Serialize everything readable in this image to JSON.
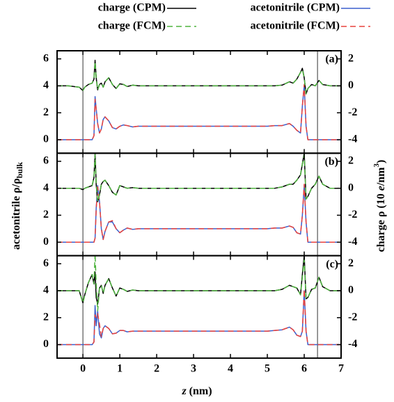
{
  "figure": {
    "x_label": [
      "z",
      " (nm)"
    ],
    "y_label": [
      "acetonitrile ρ/ρ",
      "bulk"
    ],
    "y2_label": [
      "charge ρ (10 ",
      "e",
      "/nm",
      "3",
      ")"
    ]
  },
  "chart_data": [
    {
      "type": "line",
      "label": "(a)",
      "x": [
        -0.7,
        -0.4,
        -0.1,
        0,
        0.05,
        0.15,
        0.25,
        0.3,
        0.33,
        0.36,
        0.4,
        0.45,
        0.5,
        0.55,
        0.6,
        0.7,
        0.8,
        0.9,
        1.0,
        1.1,
        1.2,
        1.35,
        1.5,
        1.7,
        2.0,
        2.5,
        3.0,
        3.5,
        4.0,
        4.5,
        4.8,
        5.0,
        5.2,
        5.4,
        5.6,
        5.7,
        5.8,
        5.9,
        5.95,
        6.0,
        6.05,
        6.1,
        6.2,
        6.3,
        6.4,
        6.5,
        6.7,
        7.0
      ],
      "xlim": [
        -0.7,
        7
      ],
      "xticks": [
        0,
        1,
        2,
        3,
        4,
        5,
        6,
        7
      ],
      "ylim": [
        -1,
        6.6
      ],
      "yticks": [
        0,
        2,
        4,
        6
      ],
      "y2lim": [
        -5,
        2.6
      ],
      "y2ticks": [
        -4,
        -2,
        0,
        2
      ],
      "vlines": [
        0,
        6.36
      ],
      "series": [
        {
          "name": "acetonitrile (CPM)",
          "color": "#3a5fcd",
          "dash": false,
          "values": [
            0,
            0,
            0,
            0,
            0,
            0,
            0,
            0.3,
            3.2,
            2.3,
            1.2,
            0.5,
            0.8,
            1.5,
            1.7,
            1.4,
            0.9,
            0.8,
            1.0,
            1.1,
            1.05,
            0.95,
            1.0,
            1.0,
            1.0,
            1.0,
            1.0,
            1.0,
            1.0,
            1.0,
            1.0,
            1.0,
            1.05,
            1.05,
            1.2,
            1.0,
            0.7,
            0.5,
            2.5,
            4.0,
            1.0,
            0,
            0,
            0,
            0,
            0,
            0,
            0
          ]
        },
        {
          "name": "acetonitrile (FCM)",
          "color": "#e8413c",
          "dash": true,
          "values": [
            0,
            0,
            0,
            0,
            0,
            0,
            0,
            0.3,
            3.0,
            2.3,
            1.2,
            0.5,
            0.8,
            1.5,
            1.7,
            1.4,
            0.9,
            0.8,
            1.0,
            1.1,
            1.05,
            0.95,
            1.0,
            1.0,
            1.0,
            1.0,
            1.0,
            1.0,
            1.0,
            1.0,
            1.0,
            1.0,
            1.05,
            1.05,
            1.2,
            1.0,
            0.7,
            0.5,
            2.5,
            4.1,
            1.0,
            0,
            0,
            0,
            0,
            0,
            0,
            0
          ]
        },
        {
          "name": "charge (CPM)",
          "color": "#000000",
          "dash": false,
          "axis": "y2",
          "values": [
            0,
            0,
            -0.1,
            -0.35,
            -0.1,
            0.1,
            0.2,
            0.5,
            1.9,
            0.6,
            -0.3,
            0.1,
            0.2,
            -0.1,
            0.3,
            0.6,
            0.1,
            -0.2,
            0.15,
            0.1,
            -0.05,
            0.05,
            0,
            0,
            0,
            0,
            0,
            0,
            0,
            0,
            0,
            0,
            0,
            0.05,
            0.3,
            0.2,
            0.5,
            1.0,
            1.3,
            0.6,
            -0.6,
            -0.2,
            0.1,
            0,
            0.4,
            0.1,
            0,
            0
          ]
        },
        {
          "name": "charge (FCM)",
          "color": "#4db33d",
          "dash": true,
          "axis": "y2",
          "values": [
            0,
            0,
            -0.1,
            -0.35,
            -0.1,
            0.1,
            0.2,
            0.5,
            1.8,
            0.6,
            -0.3,
            0.1,
            0.2,
            -0.1,
            0.3,
            0.6,
            0.1,
            -0.2,
            0.15,
            0.1,
            -0.05,
            0.05,
            0,
            0,
            0,
            0,
            0,
            0,
            0,
            0,
            0,
            0,
            0,
            0.05,
            0.3,
            0.2,
            0.5,
            1.0,
            1.2,
            0.6,
            -0.6,
            -0.2,
            0.1,
            0,
            0.4,
            0.1,
            0,
            0
          ]
        }
      ]
    },
    {
      "type": "line",
      "label": "(b)",
      "x": [
        -0.7,
        -0.4,
        -0.1,
        0,
        0.05,
        0.15,
        0.25,
        0.3,
        0.33,
        0.36,
        0.4,
        0.45,
        0.5,
        0.55,
        0.6,
        0.7,
        0.8,
        0.9,
        1.0,
        1.1,
        1.2,
        1.35,
        1.5,
        1.7,
        2.0,
        2.5,
        3.0,
        3.5,
        4.0,
        4.5,
        4.8,
        5.0,
        5.2,
        5.4,
        5.6,
        5.7,
        5.8,
        5.9,
        5.95,
        6.0,
        6.05,
        6.1,
        6.2,
        6.3,
        6.4,
        6.5,
        6.7,
        7.0
      ],
      "xlim": [
        -0.7,
        7
      ],
      "xticks": [
        0,
        1,
        2,
        3,
        4,
        5,
        6,
        7
      ],
      "ylim": [
        -1,
        6.6
      ],
      "yticks": [
        0,
        2,
        4,
        6
      ],
      "y2lim": [
        -5,
        2.6
      ],
      "y2ticks": [
        -4,
        -2,
        0,
        2
      ],
      "vlines": [
        0,
        6.36
      ],
      "series": [
        {
          "name": "acetonitrile (CPM)",
          "color": "#3a5fcd",
          "dash": false,
          "values": [
            0,
            0,
            0,
            0,
            0,
            0,
            0,
            0,
            0.3,
            2.5,
            4.2,
            3.0,
            1.0,
            0.2,
            0.8,
            1.5,
            1.5,
            1.0,
            0.7,
            0.9,
            1.05,
            0.95,
            1.0,
            1.0,
            1.0,
            1.0,
            1.0,
            1.0,
            1.0,
            1.0,
            1.0,
            1.0,
            1.05,
            1.05,
            1.2,
            1.1,
            0.7,
            0.6,
            2.0,
            4.2,
            1.5,
            0,
            0,
            0,
            0,
            0,
            0,
            0
          ]
        },
        {
          "name": "acetonitrile (FCM)",
          "color": "#e8413c",
          "dash": true,
          "values": [
            0,
            0,
            0,
            0,
            0,
            0,
            0,
            0,
            0.3,
            2.4,
            4.1,
            3.0,
            1.0,
            0.2,
            0.8,
            1.5,
            1.6,
            1.0,
            0.7,
            0.9,
            1.05,
            0.95,
            1.0,
            1.0,
            1.0,
            1.0,
            1.0,
            1.0,
            1.0,
            1.0,
            1.0,
            1.0,
            1.05,
            1.05,
            1.2,
            1.1,
            0.7,
            0.6,
            2.0,
            4.3,
            1.5,
            0,
            0,
            0,
            0,
            0,
            0,
            0
          ]
        },
        {
          "name": "charge (CPM)",
          "color": "#000000",
          "dash": false,
          "axis": "y2",
          "values": [
            0,
            0,
            0,
            -0.1,
            0,
            0.1,
            0.2,
            0.8,
            2.6,
            0.3,
            -1.0,
            -0.5,
            0.3,
            0.5,
            0.6,
            0.2,
            -0.3,
            -0.5,
            0.2,
            0.1,
            0,
            0.05,
            0,
            0,
            0,
            0,
            0,
            0,
            0,
            0,
            0,
            0,
            0,
            0.1,
            0.3,
            0.3,
            0.6,
            1.0,
            1.8,
            2.6,
            -0.8,
            -0.6,
            0,
            0.3,
            0.9,
            0.3,
            0,
            0
          ]
        },
        {
          "name": "charge (FCM)",
          "color": "#4db33d",
          "dash": true,
          "axis": "y2",
          "values": [
            0,
            0,
            0,
            -0.1,
            0,
            0.1,
            0.2,
            0.8,
            2.5,
            0.3,
            -1.0,
            -0.5,
            0.3,
            0.5,
            0.6,
            0.2,
            -0.3,
            -0.5,
            0.2,
            0.1,
            0,
            0.05,
            0,
            0,
            0,
            0,
            0,
            0,
            0,
            0,
            0,
            0,
            0,
            0.1,
            0.3,
            0.3,
            0.6,
            1.0,
            1.8,
            2.5,
            -0.8,
            -0.6,
            0,
            0.3,
            0.9,
            0.3,
            0,
            0
          ]
        }
      ]
    },
    {
      "type": "line",
      "label": "(c)",
      "x": [
        -0.7,
        -0.4,
        -0.1,
        0,
        0.05,
        0.15,
        0.25,
        0.3,
        0.33,
        0.36,
        0.4,
        0.45,
        0.5,
        0.55,
        0.6,
        0.7,
        0.8,
        0.9,
        1.0,
        1.1,
        1.2,
        1.35,
        1.5,
        1.7,
        2.0,
        2.5,
        3.0,
        3.5,
        4.0,
        4.5,
        4.8,
        5.0,
        5.2,
        5.4,
        5.6,
        5.7,
        5.8,
        5.9,
        5.95,
        6.0,
        6.05,
        6.1,
        6.2,
        6.3,
        6.4,
        6.5,
        6.7,
        7.0
      ],
      "xlim": [
        -0.7,
        7
      ],
      "xticks": [
        0,
        1,
        2,
        3,
        4,
        5,
        6,
        7
      ],
      "ylim": [
        -1,
        6.6
      ],
      "yticks": [
        0,
        2,
        4,
        6
      ],
      "y2lim": [
        -5,
        2.6
      ],
      "y2ticks": [
        -4,
        -2,
        0,
        2
      ],
      "vlines": [
        0,
        6.36
      ],
      "series": [
        {
          "name": "acetonitrile (CPM)",
          "color": "#3a5fcd",
          "dash": false,
          "values": [
            0,
            0,
            0,
            0,
            0,
            0,
            0,
            0.2,
            2.9,
            1.4,
            2.5,
            0.8,
            0.5,
            1.2,
            1.4,
            1.2,
            0.8,
            0.85,
            1.05,
            1.05,
            0.95,
            1.0,
            1.0,
            1.0,
            1.0,
            1.0,
            1.0,
            1.0,
            1.0,
            1.0,
            1.0,
            1.0,
            1.05,
            1.1,
            1.3,
            1.1,
            0.7,
            0.6,
            1.0,
            4.0,
            1.0,
            0,
            0,
            0,
            0,
            0,
            0,
            0
          ]
        },
        {
          "name": "acetonitrile (FCM)",
          "color": "#e8413c",
          "dash": true,
          "values": [
            0,
            0,
            0,
            0,
            0,
            0,
            0,
            0.2,
            2.2,
            2.0,
            2.3,
            1.5,
            0.6,
            1.2,
            1.4,
            1.2,
            0.8,
            0.85,
            1.05,
            1.05,
            0.95,
            1.0,
            1.0,
            1.0,
            1.0,
            1.0,
            1.0,
            1.0,
            1.0,
            1.0,
            1.0,
            1.0,
            1.05,
            1.1,
            1.3,
            1.1,
            0.7,
            0.6,
            1.0,
            4.1,
            1.0,
            0,
            0,
            0,
            0,
            0,
            0,
            0
          ]
        },
        {
          "name": "charge (CPM)",
          "color": "#000000",
          "dash": false,
          "axis": "y2",
          "values": [
            0,
            0,
            0,
            -0.9,
            -0.3,
            0.6,
            1.2,
            0.5,
            1.4,
            -0.5,
            -1.0,
            0.2,
            0.4,
            -0.2,
            0.4,
            0.9,
            0.2,
            -0.4,
            0.2,
            0.1,
            -0.05,
            0.05,
            0,
            0,
            0,
            0,
            0,
            0,
            0,
            0,
            0,
            0,
            0,
            0.1,
            0.4,
            0.3,
            0.2,
            -0.3,
            1.2,
            2.6,
            -0.6,
            -0.5,
            0.1,
            0.2,
            1.0,
            0.3,
            0,
            0
          ]
        },
        {
          "name": "charge (FCM)",
          "color": "#4db33d",
          "dash": true,
          "axis": "y2",
          "values": [
            0,
            0,
            0,
            -0.9,
            -0.3,
            0.6,
            1.2,
            0.5,
            2.8,
            0.5,
            -1.5,
            0.2,
            0.4,
            -0.2,
            0.4,
            0.9,
            0.2,
            -0.4,
            0.2,
            0.1,
            -0.05,
            0.05,
            0,
            0,
            0,
            0,
            0,
            0,
            0,
            0,
            0,
            0,
            0,
            0.1,
            0.4,
            0.3,
            0.2,
            -0.3,
            1.0,
            2.3,
            -0.6,
            -0.5,
            0.1,
            0.2,
            1.0,
            0.3,
            0,
            0
          ]
        }
      ]
    }
  ]
}
